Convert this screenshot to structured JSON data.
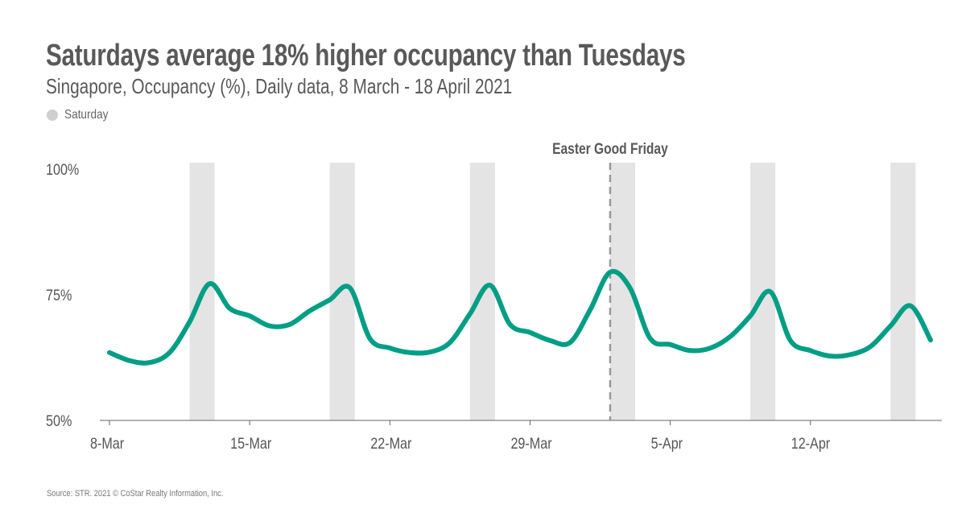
{
  "chart_data": {
    "type": "line",
    "title": "Saturdays average 18% higher occupancy than Tuesdays",
    "subtitle": "Singapore, Occupancy (%), Daily data, 8 March - 18 April 2021",
    "legend": [
      {
        "label": "Saturday",
        "color": "#e4e4e4"
      }
    ],
    "legend_placement": "top-left",
    "xlabel": "",
    "ylabel": "",
    "ylim": [
      50,
      100
    ],
    "y_ticks": [
      {
        "value": 100,
        "label": "100%"
      },
      {
        "value": 75,
        "label": "75%"
      },
      {
        "value": 50,
        "label": "50%"
      }
    ],
    "x_ticks": [
      {
        "day": 0,
        "label": "8-Mar"
      },
      {
        "day": 7,
        "label": "15-Mar"
      },
      {
        "day": 14,
        "label": "22-Mar"
      },
      {
        "day": 21,
        "label": "29-Mar"
      },
      {
        "day": 28,
        "label": "5-Apr"
      },
      {
        "day": 35,
        "label": "12-Apr"
      }
    ],
    "x_range_days": [
      0,
      41
    ],
    "saturday_bands": [
      [
        4,
        5.25
      ],
      [
        11,
        12.25
      ],
      [
        18,
        19.25
      ],
      [
        25,
        26.25
      ],
      [
        32,
        33.25
      ],
      [
        39,
        40.25
      ]
    ],
    "annotation": {
      "day": 25,
      "label": "Easter Good Friday"
    },
    "series": [
      {
        "name": "Occupancy",
        "color": "#009e85",
        "values": [
          63.5,
          61.9,
          61.5,
          63.5,
          69.6,
          77.2,
          72.3,
          70.8,
          68.8,
          69.1,
          71.8,
          74.0,
          76.4,
          66.3,
          64.4,
          63.5,
          63.6,
          65.5,
          71.2,
          76.9,
          69.1,
          67.5,
          65.9,
          65.5,
          72.0,
          79.5,
          76.3,
          66.3,
          65.1,
          63.9,
          64.4,
          66.7,
          70.8,
          75.6,
          65.9,
          63.9,
          62.8,
          63.1,
          64.7,
          68.8,
          72.8,
          66.0
        ]
      }
    ],
    "grid": false
  },
  "source": "Source: STR. 2021 © CoStar Realty Information, Inc."
}
